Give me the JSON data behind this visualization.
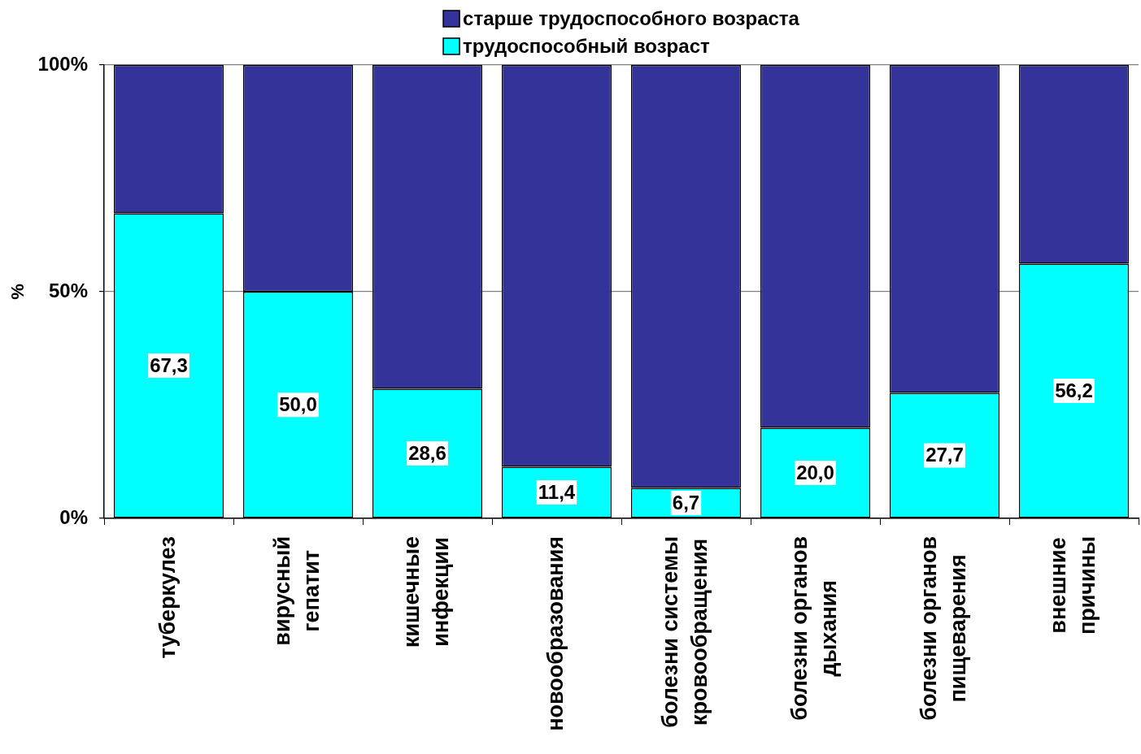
{
  "chart_data": {
    "type": "bar",
    "stacked": true,
    "ylabel": "%",
    "categories": [
      "туберкулез",
      "вирусный\nгепатит",
      "кишечные\nинфекции",
      "новообразования",
      "болезни системы\nкровообращения",
      "болезни органов\nдыхания",
      "болезни органов\nпищеварения",
      "внешние\nпричины"
    ],
    "series": [
      {
        "name": "трудоспособный возраст",
        "color": "#00ffff",
        "values": [
          67.3,
          50.0,
          28.6,
          11.4,
          6.7,
          20.0,
          27.7,
          56.2
        ],
        "value_labels": [
          "67,3",
          "50,0",
          "28,6",
          "11,4",
          "6,7",
          "20,0",
          "27,7",
          "56,2"
        ]
      },
      {
        "name": "старше трудоспособного возраста",
        "color": "#333399",
        "values": [
          32.7,
          50.0,
          71.4,
          88.6,
          93.3,
          80.0,
          72.3,
          43.8
        ]
      }
    ],
    "ylim": [
      0,
      100
    ],
    "yticks": [
      {
        "value": 0,
        "label": "0%"
      },
      {
        "value": 50,
        "label": "50%"
      },
      {
        "value": 100,
        "label": "100%"
      }
    ],
    "grid": "y",
    "legend": "top"
  }
}
